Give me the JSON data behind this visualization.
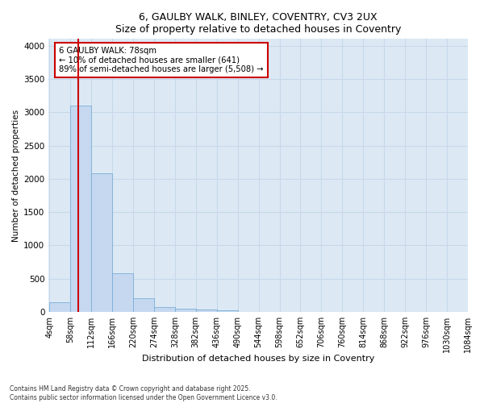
{
  "title1": "6, GAULBY WALK, BINLEY, COVENTRY, CV3 2UX",
  "title2": "Size of property relative to detached houses in Coventry",
  "xlabel": "Distribution of detached houses by size in Coventry",
  "ylabel": "Number of detached properties",
  "bin_edges": [
    4,
    58,
    112,
    166,
    220,
    274,
    328,
    382,
    436,
    490,
    544,
    598,
    652,
    706,
    760,
    814,
    868,
    922,
    976,
    1030,
    1084
  ],
  "bar_values": [
    150,
    3100,
    2080,
    580,
    210,
    80,
    55,
    35,
    25,
    0,
    0,
    0,
    0,
    0,
    0,
    0,
    0,
    0,
    0,
    0
  ],
  "bar_color": "#c5d8f0",
  "bar_edge_color": "#7aaed6",
  "grid_color": "#c8d8ea",
  "bg_color": "#dce9f5",
  "fig_bg_color": "#ffffff",
  "vline_x": 78,
  "vline_color": "#cc0000",
  "annotation_text": "6 GAULBY WALK: 78sqm\n← 10% of detached houses are smaller (641)\n89% of semi-detached houses are larger (5,508) →",
  "annotation_box_color": "#ffffff",
  "annotation_box_edge": "#cc0000",
  "ylim": [
    0,
    4100
  ],
  "yticks": [
    0,
    500,
    1000,
    1500,
    2000,
    2500,
    3000,
    3500,
    4000
  ],
  "footer1": "Contains HM Land Registry data © Crown copyright and database right 2025.",
  "footer2": "Contains public sector information licensed under the Open Government Licence v3.0."
}
